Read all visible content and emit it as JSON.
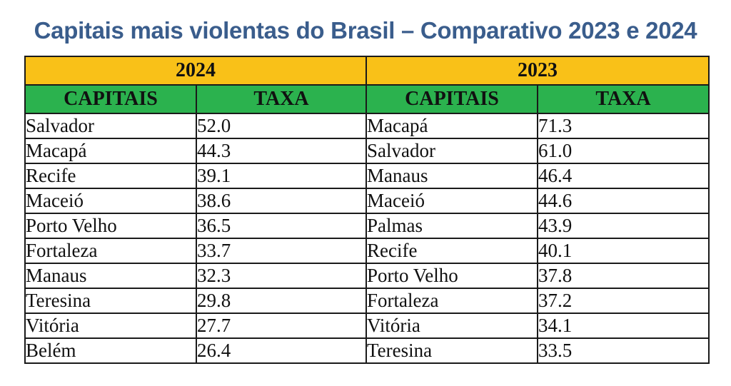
{
  "title": "Capitais mais violentas do Brasil – Comparativo 2023 e 2024",
  "years": [
    {
      "year": "2024",
      "col_city": "CAPITAIS",
      "col_rate": "TAXA",
      "rows": [
        {
          "city": "Salvador",
          "rate": "52.0"
        },
        {
          "city": "Macapá",
          "rate": "44.3"
        },
        {
          "city": "Recife",
          "rate": "39.1"
        },
        {
          "city": "Maceió",
          "rate": "38.6"
        },
        {
          "city": "Porto Velho",
          "rate": "36.5"
        },
        {
          "city": "Fortaleza",
          "rate": "33.7"
        },
        {
          "city": "Manaus",
          "rate": "32.3"
        },
        {
          "city": "Teresina",
          "rate": "29.8"
        },
        {
          "city": "Vitória",
          "rate": "27.7"
        },
        {
          "city": "Belém",
          "rate": "26.4"
        }
      ]
    },
    {
      "year": "2023",
      "col_city": "CAPITAIS",
      "col_rate": "TAXA",
      "rows": [
        {
          "city": "Macapá",
          "rate": "71.3"
        },
        {
          "city": "Salvador",
          "rate": "61.0"
        },
        {
          "city": "Manaus",
          "rate": "46.4"
        },
        {
          "city": "Maceió",
          "rate": "44.6"
        },
        {
          "city": "Palmas",
          "rate": "43.9"
        },
        {
          "city": "Recife",
          "rate": "40.1"
        },
        {
          "city": "Porto Velho",
          "rate": "37.8"
        },
        {
          "city": "Fortaleza",
          "rate": "37.2"
        },
        {
          "city": "Vitória",
          "rate": "34.1"
        },
        {
          "city": "Teresina",
          "rate": "33.5"
        }
      ]
    }
  ],
  "colors": {
    "title": "#3a5d8c",
    "year_header": "#f9c118",
    "column_header": "#2bb24e"
  }
}
